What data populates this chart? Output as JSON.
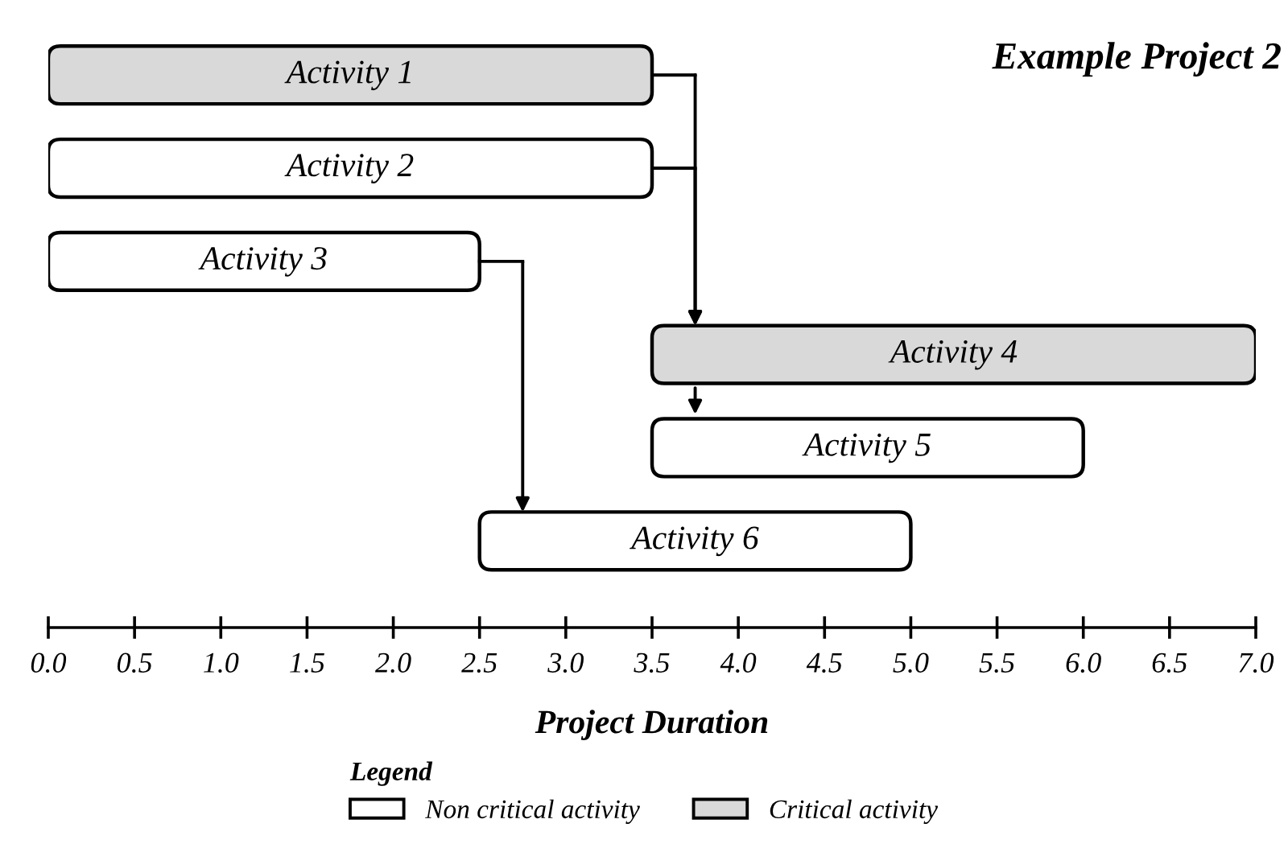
{
  "chart_data": {
    "type": "bar",
    "orientation": "horizontal",
    "title": "Example Project 2",
    "xlabel": "Project Duration",
    "legend_title": "Legend",
    "legend": "bottom",
    "categories": [
      "Activity 1",
      "Activity 2",
      "Activity 3",
      "Activity 4",
      "Activity 5",
      "Activity 6"
    ],
    "series": [
      {
        "name": "Non critical activity",
        "color": "#ffffff",
        "base": [
          null,
          0.0,
          0.0,
          null,
          3.5,
          2.5
        ],
        "values": [
          null,
          3.5,
          2.5,
          null,
          2.5,
          2.5
        ]
      },
      {
        "name": "Critical activity",
        "color": "#d9d9d9",
        "base": [
          0.0,
          null,
          null,
          3.5,
          null,
          null
        ],
        "values": [
          3.5,
          null,
          null,
          3.5,
          null,
          null
        ]
      }
    ],
    "xlim": [
      0.0,
      7.0
    ],
    "xticks": [
      {
        "value": 0,
        "label": "0.0"
      },
      0.5,
      {
        "value": 1,
        "label": "1.0"
      },
      1.5,
      {
        "value": 2,
        "label": "2.0"
      },
      2.5,
      {
        "value": 3,
        "label": "3.0"
      },
      3.5,
      {
        "value": 4,
        "label": "4.0"
      },
      4.5,
      {
        "value": 5,
        "label": "5.0"
      },
      5.5,
      {
        "value": 6,
        "label": "6.0"
      },
      6.5,
      {
        "value": 7,
        "label": "7.0"
      }
    ],
    "grid": false
  }
}
